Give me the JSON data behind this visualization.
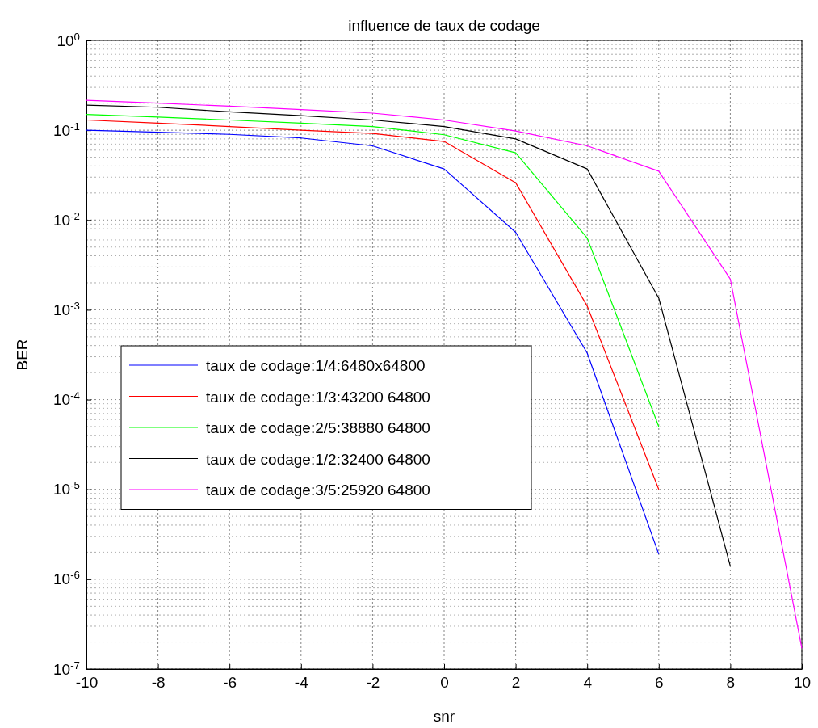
{
  "chart_data": {
    "type": "line",
    "title": "influence de taux de codage",
    "xlabel": "snr",
    "ylabel": "BER",
    "x": [
      -10,
      -8,
      -6,
      -4,
      -2,
      0,
      2,
      4,
      6,
      8,
      10
    ],
    "series": [
      {
        "name": "taux de codage:1/4:6480x64800",
        "color": "#0000ff",
        "values": [
          0.1,
          0.095,
          0.09,
          0.082,
          0.067,
          0.037,
          0.0073,
          0.00033,
          1.9e-06,
          null,
          null
        ]
      },
      {
        "name": "taux de codage:1/3:43200 64800",
        "color": "#ff0000",
        "values": [
          0.13,
          0.12,
          0.11,
          0.1,
          0.092,
          0.075,
          0.026,
          0.0011,
          1e-05,
          null,
          null
        ]
      },
      {
        "name": "taux de codage:2/5:38880 64800",
        "color": "#00ff00",
        "values": [
          0.15,
          0.14,
          0.13,
          0.12,
          0.11,
          0.089,
          0.056,
          0.0063,
          5e-05,
          null,
          null
        ]
      },
      {
        "name": "taux de codage:1/2:32400 64800",
        "color": "#000000",
        "values": [
          0.19,
          0.18,
          0.16,
          0.145,
          0.13,
          0.11,
          0.08,
          0.037,
          0.00135,
          1.4e-06,
          null
        ]
      },
      {
        "name": "taux de codage:3/5:25920 64800",
        "color": "#ff00ff",
        "values": [
          0.215,
          0.2,
          0.185,
          0.17,
          0.155,
          0.13,
          0.098,
          0.067,
          0.035,
          0.0022,
          1.7e-07
        ]
      }
    ],
    "log": true,
    "xlim": [
      -10,
      10
    ],
    "ylim": [
      1e-07,
      1
    ],
    "xticks": [
      -10,
      -8,
      -6,
      -4,
      -2,
      0,
      2,
      4,
      6,
      8,
      10
    ],
    "yticks": [
      {
        "value": 1e-07,
        "label": "10$^{-7}$"
      },
      {
        "value": 1e-06,
        "label": "10$^{-6}$"
      },
      {
        "value": 1e-05,
        "label": "10$^{-5}$"
      },
      {
        "value": 0.0001,
        "label": "10$^{-4}$"
      },
      {
        "value": 0.001,
        "label": "10$^{-3}$"
      },
      {
        "value": 0.01,
        "label": "10$^{-2}$"
      },
      {
        "value": 0.1,
        "label": "10$^{-1}$"
      },
      {
        "value": 1,
        "label": "10$^{0}$"
      }
    ],
    "grid": true,
    "legend": "left",
    "line_style": "solid",
    "marker": "none"
  }
}
